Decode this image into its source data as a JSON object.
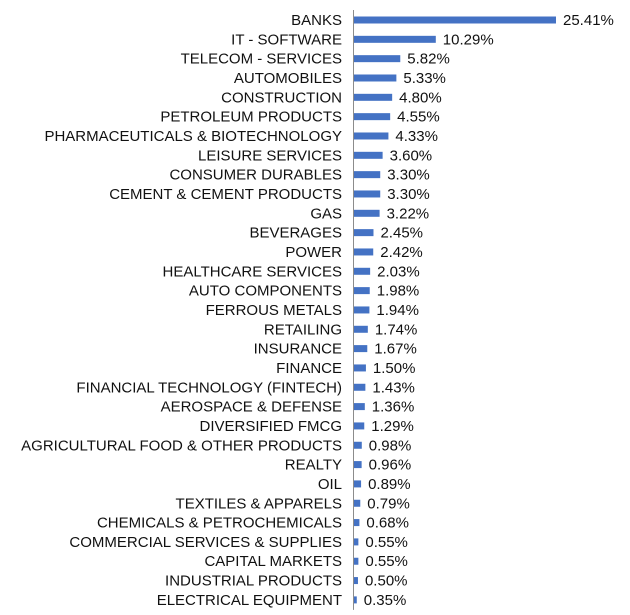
{
  "chart_data": {
    "type": "bar",
    "orientation": "horizontal",
    "categories": [
      "BANKS",
      "IT - SOFTWARE",
      "TELECOM - SERVICES",
      "AUTOMOBILES",
      "CONSTRUCTION",
      "PETROLEUM PRODUCTS",
      "PHARMACEUTICALS & BIOTECHNOLOGY",
      "LEISURE SERVICES",
      "CONSUMER DURABLES",
      "CEMENT & CEMENT PRODUCTS",
      "GAS",
      "BEVERAGES",
      "POWER",
      "HEALTHCARE SERVICES",
      "AUTO COMPONENTS",
      "FERROUS METALS",
      "RETAILING",
      "INSURANCE",
      "FINANCE",
      "FINANCIAL TECHNOLOGY (FINTECH)",
      "AEROSPACE & DEFENSE",
      "DIVERSIFIED FMCG",
      "AGRICULTURAL FOOD & OTHER PRODUCTS",
      "REALTY",
      "OIL",
      "TEXTILES & APPARELS",
      "CHEMICALS & PETROCHEMICALS",
      "COMMERCIAL SERVICES & SUPPLIES",
      "CAPITAL MARKETS",
      "INDUSTRIAL PRODUCTS",
      "ELECTRICAL EQUIPMENT"
    ],
    "values": [
      25.41,
      10.29,
      5.82,
      5.33,
      4.8,
      4.55,
      4.33,
      3.6,
      3.3,
      3.3,
      3.22,
      2.45,
      2.42,
      2.03,
      1.98,
      1.94,
      1.74,
      1.67,
      1.5,
      1.43,
      1.36,
      1.29,
      0.98,
      0.96,
      0.89,
      0.79,
      0.68,
      0.55,
      0.55,
      0.5,
      0.35
    ],
    "value_labels": [
      "25.41%",
      "10.29%",
      "5.82%",
      "5.33%",
      "4.80%",
      "4.55%",
      "4.33%",
      "3.60%",
      "3.30%",
      "3.30%",
      "3.22%",
      "2.45%",
      "2.42%",
      "2.03%",
      "1.98%",
      "1.94%",
      "1.74%",
      "1.67%",
      "1.50%",
      "1.43%",
      "1.36%",
      "1.29%",
      "0.98%",
      "0.96%",
      "0.89%",
      "0.79%",
      "0.68%",
      "0.55%",
      "0.55%",
      "0.50%",
      "0.35%"
    ],
    "title": "",
    "xlabel": "",
    "ylabel": "",
    "xlim": [
      0,
      25.41
    ],
    "grid": false,
    "legend": "none",
    "bar_color": "#4472C4",
    "axis_color": "#8c8c8c"
  }
}
